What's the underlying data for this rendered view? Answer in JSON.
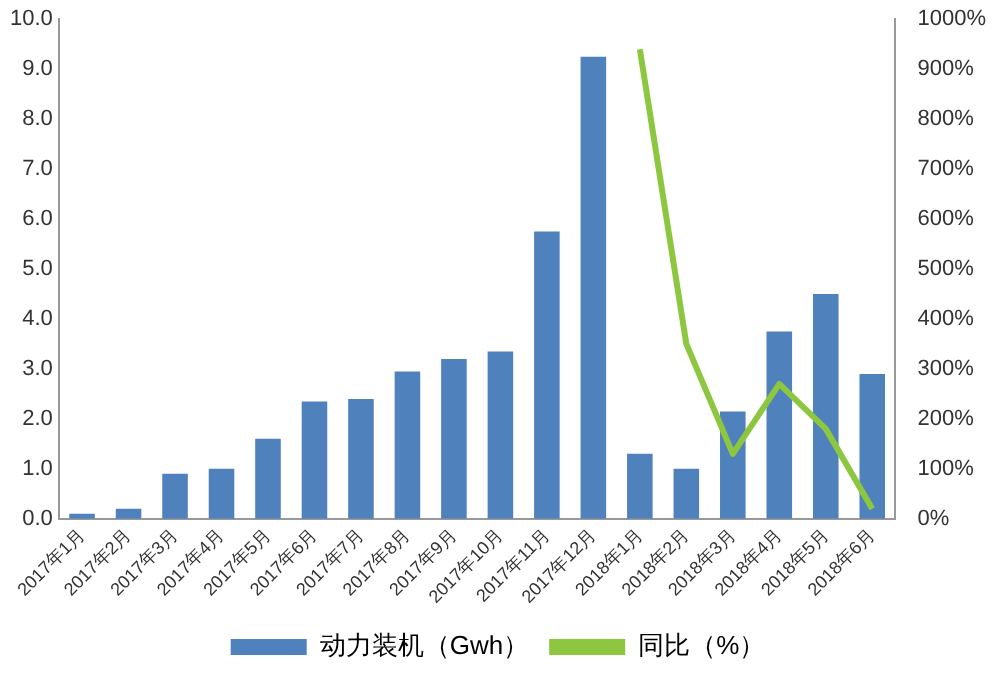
{
  "chart_data": {
    "type": "bar",
    "categories": [
      "2017年1月",
      "2017年2月",
      "2017年3月",
      "2017年4月",
      "2017年5月",
      "2017年6月",
      "2017年7月",
      "2017年8月",
      "2017年9月",
      "2017年10月",
      "2017年11月",
      "2017年12月",
      "2018年1月",
      "2018年2月",
      "2018年3月",
      "2018年4月",
      "2018年5月",
      "2018年6月"
    ],
    "series": [
      {
        "name": "动力装机（Gwh）",
        "color": "#4f81bd",
        "values": [
          0.1,
          0.2,
          0.9,
          1.0,
          1.6,
          2.35,
          2.4,
          2.95,
          3.2,
          3.35,
          5.75,
          9.25,
          1.3,
          1.0,
          2.15,
          3.75,
          4.5,
          2.9
        ]
      },
      {
        "name": "同比（%）",
        "type": "line",
        "axis": "y2",
        "color": "#8dc63f",
        "marker": "none",
        "values": [
          null,
          null,
          null,
          null,
          null,
          null,
          null,
          null,
          null,
          null,
          null,
          null,
          940,
          350,
          130,
          270,
          180,
          20
        ]
      }
    ],
    "ylim": [
      0,
      10
    ],
    "yticks": [
      {
        "value": 0,
        "label": "0.0"
      },
      {
        "value": 1,
        "label": "1.0"
      },
      {
        "value": 2,
        "label": "2.0"
      },
      {
        "value": 3,
        "label": "3.0"
      },
      {
        "value": 4,
        "label": "4.0"
      },
      {
        "value": 5,
        "label": "5.0"
      },
      {
        "value": 6,
        "label": "6.0"
      },
      {
        "value": 7,
        "label": "7.0"
      },
      {
        "value": 8,
        "label": "8.0"
      },
      {
        "value": 9,
        "label": "9.0"
      },
      {
        "value": 10,
        "label": "10.0"
      }
    ],
    "y2lim": [
      0,
      1000
    ],
    "y2ticks": [
      {
        "value": 0,
        "label": "0%"
      },
      {
        "value": 100,
        "label": "100%"
      },
      {
        "value": 200,
        "label": "200%"
      },
      {
        "value": 300,
        "label": "300%"
      },
      {
        "value": 400,
        "label": "400%"
      },
      {
        "value": 500,
        "label": "500%"
      },
      {
        "value": 600,
        "label": "600%"
      },
      {
        "value": 700,
        "label": "700%"
      },
      {
        "value": 800,
        "label": "800%"
      },
      {
        "value": 900,
        "label": "900%"
      },
      {
        "value": 1000,
        "label": "1000%"
      }
    ],
    "grid": false,
    "legend": "bottom"
  }
}
